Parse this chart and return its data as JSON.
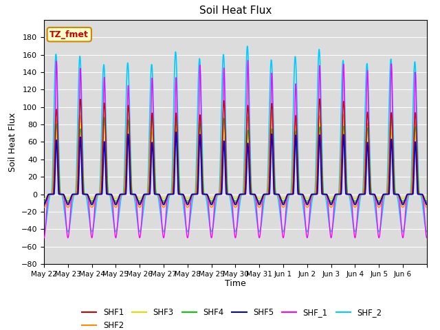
{
  "title": "Soil Heat Flux",
  "ylabel": "Soil Heat Flux",
  "xlabel": "Time",
  "annotation_text": "TZ_fmet",
  "annotation_bg": "#FFFFCC",
  "annotation_border": "#CC8800",
  "annotation_text_color": "#CC0000",
  "ylim": [
    -80,
    200
  ],
  "yticks": [
    -80,
    -60,
    -40,
    -20,
    0,
    20,
    40,
    60,
    80,
    100,
    120,
    140,
    160,
    180
  ],
  "bg_color": "#DCDCDC",
  "series": {
    "SHF1": {
      "color": "#CC0000",
      "lw": 1.0
    },
    "SHF2": {
      "color": "#FF8800",
      "lw": 1.0
    },
    "SHF3": {
      "color": "#DDDD00",
      "lw": 1.0
    },
    "SHF4": {
      "color": "#00CC00",
      "lw": 1.0
    },
    "SHF5": {
      "color": "#0000CC",
      "lw": 1.2
    },
    "SHF_1": {
      "color": "#FF00FF",
      "lw": 1.0
    },
    "SHF_2": {
      "color": "#00CCFF",
      "lw": 1.2
    }
  },
  "x_tick_labels": [
    "May 22",
    "May 23",
    "May 24",
    "May 25",
    "May 26",
    "May 27",
    "May 28",
    "May 29",
    "May 30",
    "May 31",
    "Jun 1",
    "Jun 2",
    "Jun 3",
    "Jun 4",
    "Jun 5",
    "Jun 6"
  ],
  "n_days": 16,
  "points_per_day": 288
}
